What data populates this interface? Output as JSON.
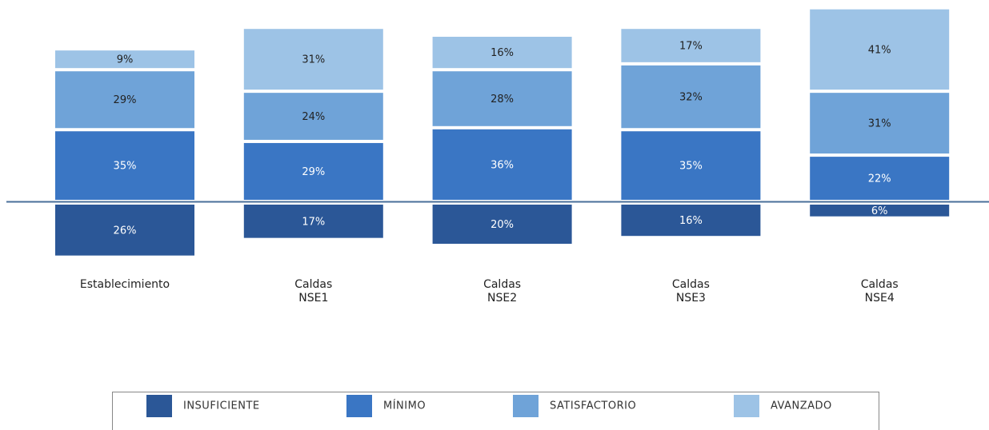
{
  "chart_data": {
    "type": "bar",
    "stacked": true,
    "categories": [
      "Establecimiento",
      "Caldas NSE1",
      "Caldas NSE2",
      "Caldas NSE3",
      "Caldas NSE4"
    ],
    "series": [
      {
        "name": "INSUFICIENTE",
        "color": "#2b5797",
        "values": [
          26,
          17,
          20,
          16,
          6
        ],
        "value_labels": [
          "26%",
          "17%",
          "20%",
          "16%",
          "6%"
        ]
      },
      {
        "name": "MÍNIMO",
        "color": "#3a76c4",
        "values": [
          35,
          29,
          36,
          35,
          22
        ],
        "value_labels": [
          "35%",
          "29%",
          "36%",
          "35%",
          "22%"
        ]
      },
      {
        "name": "SATISFACTORIO",
        "color": "#6fa3d8",
        "values": [
          29,
          24,
          28,
          32,
          31
        ],
        "value_labels": [
          "29%",
          "24%",
          "28%",
          "32%",
          "31%"
        ]
      },
      {
        "name": "AVANZADO",
        "color": "#9dc3e6",
        "values": [
          9,
          31,
          16,
          17,
          41
        ],
        "value_labels": [
          "9%",
          "31%",
          "16%",
          "17%",
          "41%"
        ]
      }
    ]
  }
}
